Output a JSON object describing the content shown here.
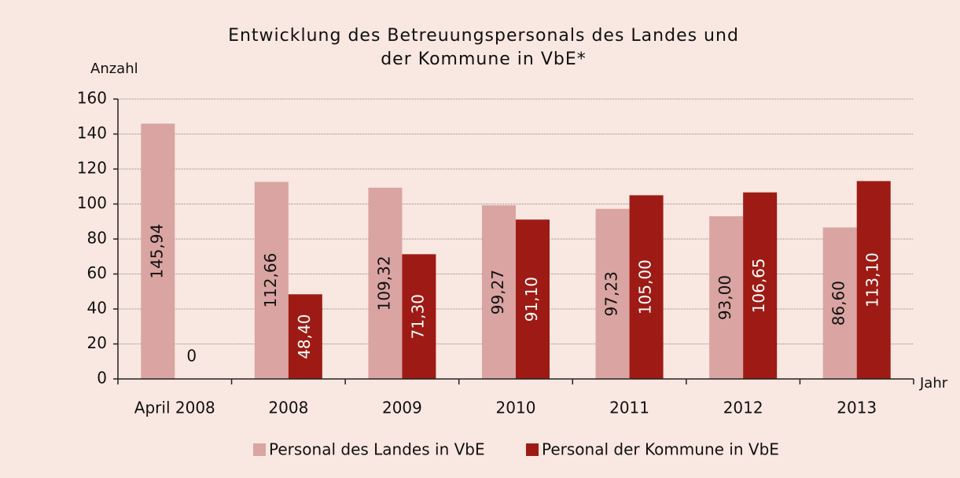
{
  "chart_data": {
    "type": "bar",
    "title": [
      "Entwicklung des Betreuungspersonals des Landes und",
      "der Kommune in VbE*"
    ],
    "y_label": "Anzahl",
    "x_label": "Jahr",
    "categories": [
      "April 2008",
      "2008",
      "2009",
      "2010",
      "2011",
      "2012",
      "2013"
    ],
    "series": [
      {
        "name": "Personal des Landes in VbE",
        "color": "#d9a4a1",
        "values": [
          145.94,
          112.66,
          109.32,
          99.27,
          97.23,
          93.0,
          86.6
        ],
        "value_labels": [
          "145,94",
          "112,66",
          "109,32",
          "99,27",
          "97,23",
          "93,00",
          "86,60"
        ]
      },
      {
        "name": "Personal der Kommune in VbE",
        "color": "#9e1b15",
        "values": [
          0,
          48.4,
          71.3,
          91.1,
          105.0,
          106.65,
          113.1
        ],
        "value_labels": [
          "0",
          "48,40",
          "71,30",
          "91,10",
          "105,00",
          "106,65",
          "113,10"
        ]
      }
    ],
    "ylim": [
      0,
      160
    ],
    "yticks": [
      0,
      20,
      40,
      60,
      80,
      100,
      120,
      140,
      160
    ],
    "grid": true
  }
}
